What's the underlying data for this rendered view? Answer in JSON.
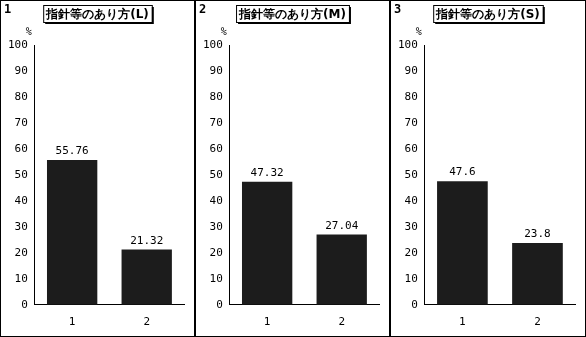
{
  "chart_data": [
    {
      "type": "bar",
      "title": "指針等のあり方(L)",
      "annotations": [
        "1"
      ],
      "ylabel": "%",
      "categories": [
        "1",
        "2"
      ],
      "values": [
        55.76,
        21.32
      ],
      "color": "#1c1c1c",
      "ylim": [
        0,
        100
      ],
      "yticks": [
        0,
        10,
        20,
        30,
        40,
        50,
        60,
        70,
        80,
        90,
        100
      ],
      "grid": false,
      "data_labels": true
    },
    {
      "type": "bar",
      "title": "指針等のあり方(M)",
      "annotations": [
        "2"
      ],
      "ylabel": "%",
      "categories": [
        "1",
        "2"
      ],
      "values": [
        47.32,
        27.04
      ],
      "color": "#1c1c1c",
      "ylim": [
        0,
        100
      ],
      "yticks": [
        0,
        10,
        20,
        30,
        40,
        50,
        60,
        70,
        80,
        90,
        100
      ],
      "grid": false,
      "data_labels": true
    },
    {
      "type": "bar",
      "title": "指針等のあり方(S)",
      "annotations": [
        "3"
      ],
      "ylabel": "%",
      "categories": [
        "1",
        "2"
      ],
      "values": [
        47.6,
        23.8
      ],
      "color": "#1c1c1c",
      "ylim": [
        0,
        100
      ],
      "yticks": [
        0,
        10,
        20,
        30,
        40,
        50,
        60,
        70,
        80,
        90,
        100
      ],
      "grid": false,
      "data_labels": true
    }
  ]
}
